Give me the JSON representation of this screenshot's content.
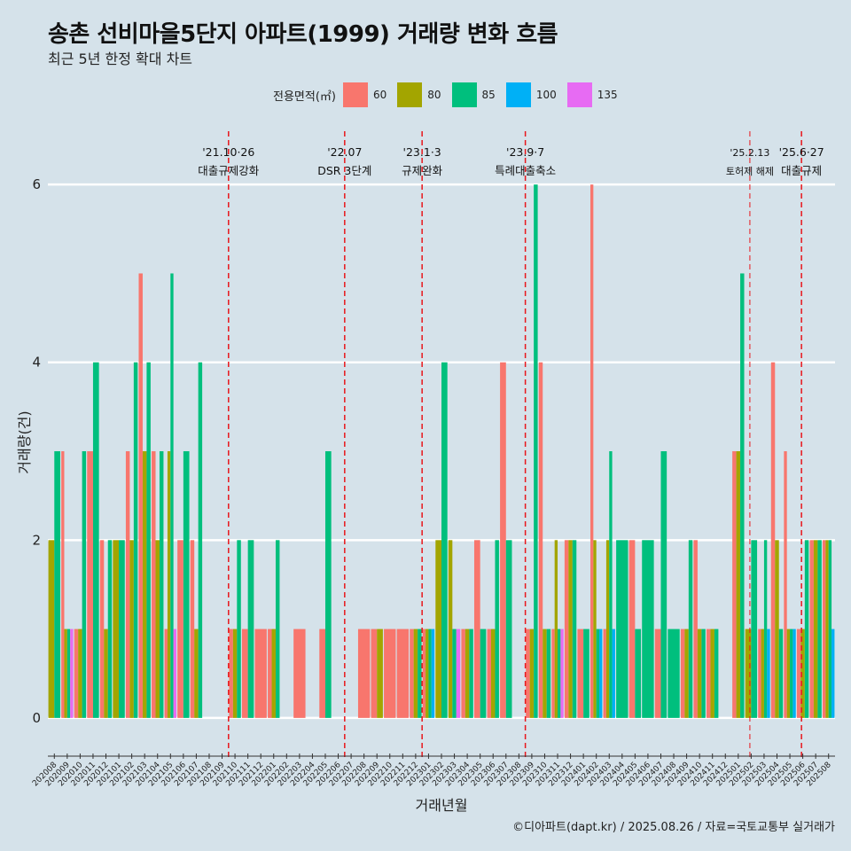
{
  "title": "송촌 선비마을5단지 아파트(1999) 거래량 변화 흐름",
  "subtitle": "최근 5년 한정 확대 차트",
  "caption": "©디아파트(dapt.kr) / 2025.08.26 / 자료=국토교통부 실거래가",
  "legend": {
    "title": "전용면적(㎡)",
    "items": [
      {
        "label": "60",
        "color": "#f8766d"
      },
      {
        "label": "80",
        "color": "#a3a500"
      },
      {
        "label": "85",
        "color": "#00bf7d"
      },
      {
        "label": "100",
        "color": "#00b0f6"
      },
      {
        "label": "135",
        "color": "#e76bf3"
      }
    ]
  },
  "chart_data": {
    "type": "bar",
    "xlabel": "거래년월",
    "ylabel": "거래량(건)",
    "ylim": [
      -0.4,
      6.6
    ],
    "yticks": [
      0,
      2,
      4,
      6
    ],
    "categories": [
      "202008",
      "202009",
      "202010",
      "202011",
      "202012",
      "202101",
      "202102",
      "202103",
      "202104",
      "202105",
      "202106",
      "202107",
      "202108",
      "202109",
      "202110",
      "202111",
      "202112",
      "202201",
      "202202",
      "202203",
      "202204",
      "202205",
      "202206",
      "202207",
      "202208",
      "202209",
      "202210",
      "202211",
      "202212",
      "202301",
      "202302",
      "202303",
      "202304",
      "202305",
      "202306",
      "202307",
      "202308",
      "202309",
      "202310",
      "202311",
      "202312",
      "202401",
      "202402",
      "202403",
      "202404",
      "202405",
      "202406",
      "202407",
      "202408",
      "202409",
      "202410",
      "202411",
      "202412",
      "202501",
      "202502",
      "202503",
      "202504",
      "202505",
      "202506",
      "202507",
      "202508"
    ],
    "series": [
      {
        "name": "60",
        "color": "#f8766d",
        "values": [
          0,
          3,
          1,
          3,
          2,
          0,
          3,
          5,
          3,
          1,
          2,
          2,
          0,
          0,
          1,
          1,
          1,
          1,
          0,
          1,
          0,
          1,
          0,
          0,
          1,
          1,
          1,
          1,
          1,
          1,
          0,
          0,
          1,
          2,
          1,
          4,
          0,
          1,
          4,
          1,
          2,
          1,
          6,
          1,
          0,
          2,
          0,
          1,
          0,
          1,
          2,
          1,
          0,
          3,
          0,
          1,
          4,
          3,
          1,
          2,
          2
        ]
      },
      {
        "name": "80",
        "color": "#a3a500",
        "values": [
          2,
          1,
          1,
          0,
          1,
          2,
          2,
          3,
          2,
          3,
          0,
          1,
          0,
          0,
          1,
          0,
          0,
          1,
          0,
          0,
          0,
          0,
          0,
          0,
          0,
          1,
          0,
          0,
          1,
          1,
          2,
          2,
          1,
          0,
          1,
          0,
          0,
          1,
          1,
          2,
          2,
          0,
          2,
          2,
          0,
          0,
          0,
          0,
          0,
          1,
          1,
          1,
          0,
          3,
          1,
          1,
          2,
          1,
          1,
          2,
          2
        ]
      },
      {
        "name": "85",
        "color": "#00bf7d",
        "values": [
          3,
          1,
          3,
          4,
          2,
          2,
          4,
          4,
          3,
          5,
          3,
          4,
          0,
          0,
          2,
          2,
          0,
          2,
          0,
          0,
          0,
          3,
          0,
          0,
          0,
          0,
          0,
          0,
          1,
          1,
          4,
          1,
          1,
          1,
          2,
          2,
          0,
          6,
          1,
          1,
          2,
          1,
          1,
          3,
          2,
          1,
          2,
          3,
          1,
          2,
          1,
          1,
          0,
          5,
          2,
          2,
          1,
          1,
          2,
          2,
          2
        ]
      },
      {
        "name": "100",
        "color": "#00b0f6",
        "values": [
          0,
          0,
          0,
          0,
          0,
          0,
          0,
          0,
          0,
          0,
          0,
          0,
          0,
          0,
          0,
          0,
          0,
          0,
          0,
          0,
          0,
          0,
          0,
          0,
          0,
          0,
          0,
          0,
          0,
          1,
          0,
          0,
          0,
          0,
          0,
          0,
          0,
          0,
          0,
          0,
          0,
          0,
          1,
          1,
          0,
          0,
          0,
          0,
          0,
          0,
          0,
          0,
          0,
          0,
          0,
          1,
          0,
          1,
          0,
          0,
          1
        ]
      },
      {
        "name": "135",
        "color": "#e76bf3",
        "values": [
          0,
          1,
          0,
          0,
          0,
          0,
          0,
          0,
          0,
          1,
          0,
          0,
          0,
          0,
          0,
          0,
          0,
          0,
          0,
          0,
          0,
          0,
          0,
          0,
          0,
          0,
          0,
          0,
          0,
          0,
          0,
          1,
          0,
          0,
          0,
          0,
          0,
          0,
          0,
          1,
          0,
          0,
          0,
          0,
          0,
          0,
          0,
          0,
          0,
          0,
          0,
          0,
          0,
          0,
          0,
          0,
          0,
          0,
          0,
          0,
          0
        ]
      }
    ],
    "annotations": [
      {
        "index": 14.0,
        "date": "'21.10·26",
        "label": "대출규제강화",
        "small": false
      },
      {
        "index": 23.0,
        "date": "'22.07",
        "label": "DSR 3단계",
        "small": false
      },
      {
        "index": 29.0,
        "date": "'23.1·3",
        "label": "규제완화",
        "small": false
      },
      {
        "index": 37.0,
        "date": "'23.9·7",
        "label": "특례대출축소",
        "small": false
      },
      {
        "index": 54.4,
        "date": "'25.2.13",
        "label": "토허제 해제",
        "small": true
      },
      {
        "index": 58.4,
        "date": "'25.6·27",
        "label": "대출규제",
        "small": false
      }
    ]
  }
}
